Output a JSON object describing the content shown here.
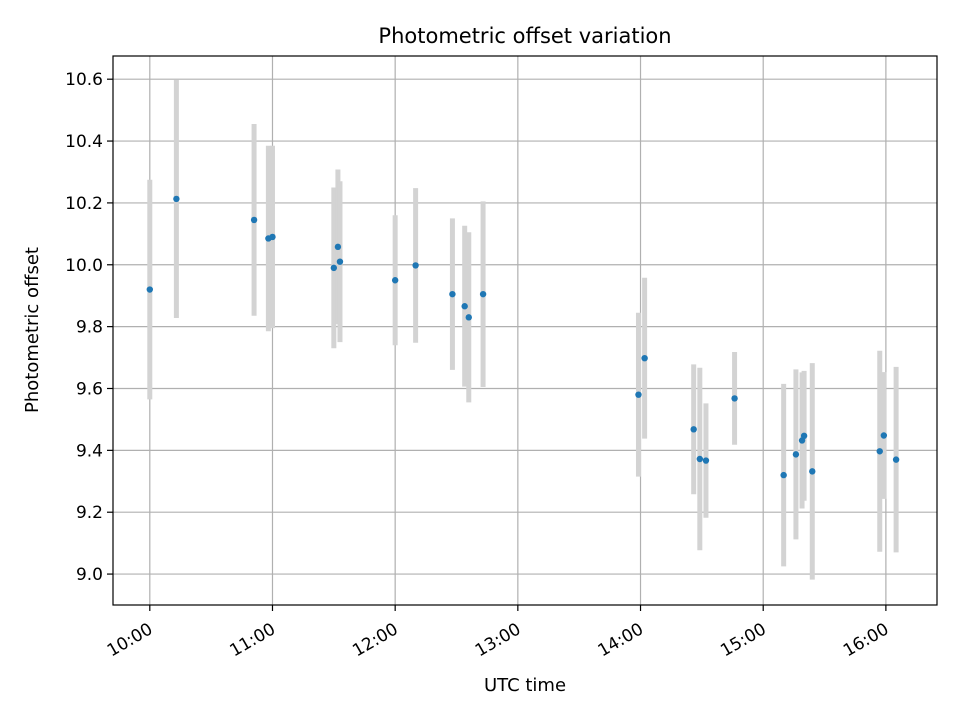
{
  "chart_data": {
    "type": "scatter",
    "title": "Photometric offset variation",
    "xlabel": "UTC time",
    "ylabel": "Photometric offset",
    "x_tick_labels": [
      "10:00",
      "11:00",
      "12:00",
      "13:00",
      "14:00",
      "15:00",
      "16:00"
    ],
    "y_tick_labels": [
      "9.0",
      "9.2",
      "9.4",
      "9.6",
      "9.8",
      "10.0",
      "10.2",
      "10.4",
      "10.6"
    ],
    "grid": true,
    "point_color": "#1f77b4",
    "errorbar_color": "#d3d3d3",
    "x_range": [
      "09:42",
      "16:25"
    ],
    "ylim": [
      8.9,
      10.675
    ],
    "x_major_ticks": [
      "10:00",
      "11:00",
      "12:00",
      "13:00",
      "14:00",
      "15:00",
      "16:00"
    ],
    "y_major_ticks": [
      9.0,
      9.2,
      9.4,
      9.6,
      9.8,
      10.0,
      10.2,
      10.4,
      10.6
    ],
    "points": [
      {
        "time": "10:00",
        "y": 9.92,
        "yerr": 0.355
      },
      {
        "time": "10:13",
        "y": 10.213,
        "yerr": 0.385
      },
      {
        "time": "10:51",
        "y": 10.145,
        "yerr": 0.31
      },
      {
        "time": "10:58",
        "y": 10.085,
        "yerr": 0.3
      },
      {
        "time": "11:00",
        "y": 10.09,
        "yerr": 0.295
      },
      {
        "time": "11:30",
        "y": 9.99,
        "yerr": 0.26
      },
      {
        "time": "11:32",
        "y": 10.058,
        "yerr": 0.25
      },
      {
        "time": "11:33",
        "y": 10.01,
        "yerr": 0.26
      },
      {
        "time": "12:00",
        "y": 9.95,
        "yerr": 0.21
      },
      {
        "time": "12:10",
        "y": 9.998,
        "yerr": 0.25
      },
      {
        "time": "12:28",
        "y": 9.905,
        "yerr": 0.245
      },
      {
        "time": "12:34",
        "y": 9.866,
        "yerr": 0.26
      },
      {
        "time": "12:36",
        "y": 9.83,
        "yerr": 0.275
      },
      {
        "time": "12:43",
        "y": 9.905,
        "yerr": 0.3
      },
      {
        "time": "13:59",
        "y": 9.58,
        "yerr": 0.265
      },
      {
        "time": "14:02",
        "y": 9.698,
        "yerr": 0.26
      },
      {
        "time": "14:26",
        "y": 9.468,
        "yerr": 0.21
      },
      {
        "time": "14:29",
        "y": 9.372,
        "yerr": 0.295
      },
      {
        "time": "14:32",
        "y": 9.367,
        "yerr": 0.185
      },
      {
        "time": "14:46",
        "y": 9.568,
        "yerr": 0.15
      },
      {
        "time": "15:10",
        "y": 9.32,
        "yerr": 0.295
      },
      {
        "time": "15:16",
        "y": 9.387,
        "yerr": 0.275
      },
      {
        "time": "15:19",
        "y": 9.432,
        "yerr": 0.22
      },
      {
        "time": "15:20",
        "y": 9.447,
        "yerr": 0.21
      },
      {
        "time": "15:24",
        "y": 9.332,
        "yerr": 0.35
      },
      {
        "time": "15:57",
        "y": 9.397,
        "yerr": 0.325
      },
      {
        "time": "15:59",
        "y": 9.448,
        "yerr": 0.205
      },
      {
        "time": "16:05",
        "y": 9.37,
        "yerr": 0.3
      }
    ]
  }
}
